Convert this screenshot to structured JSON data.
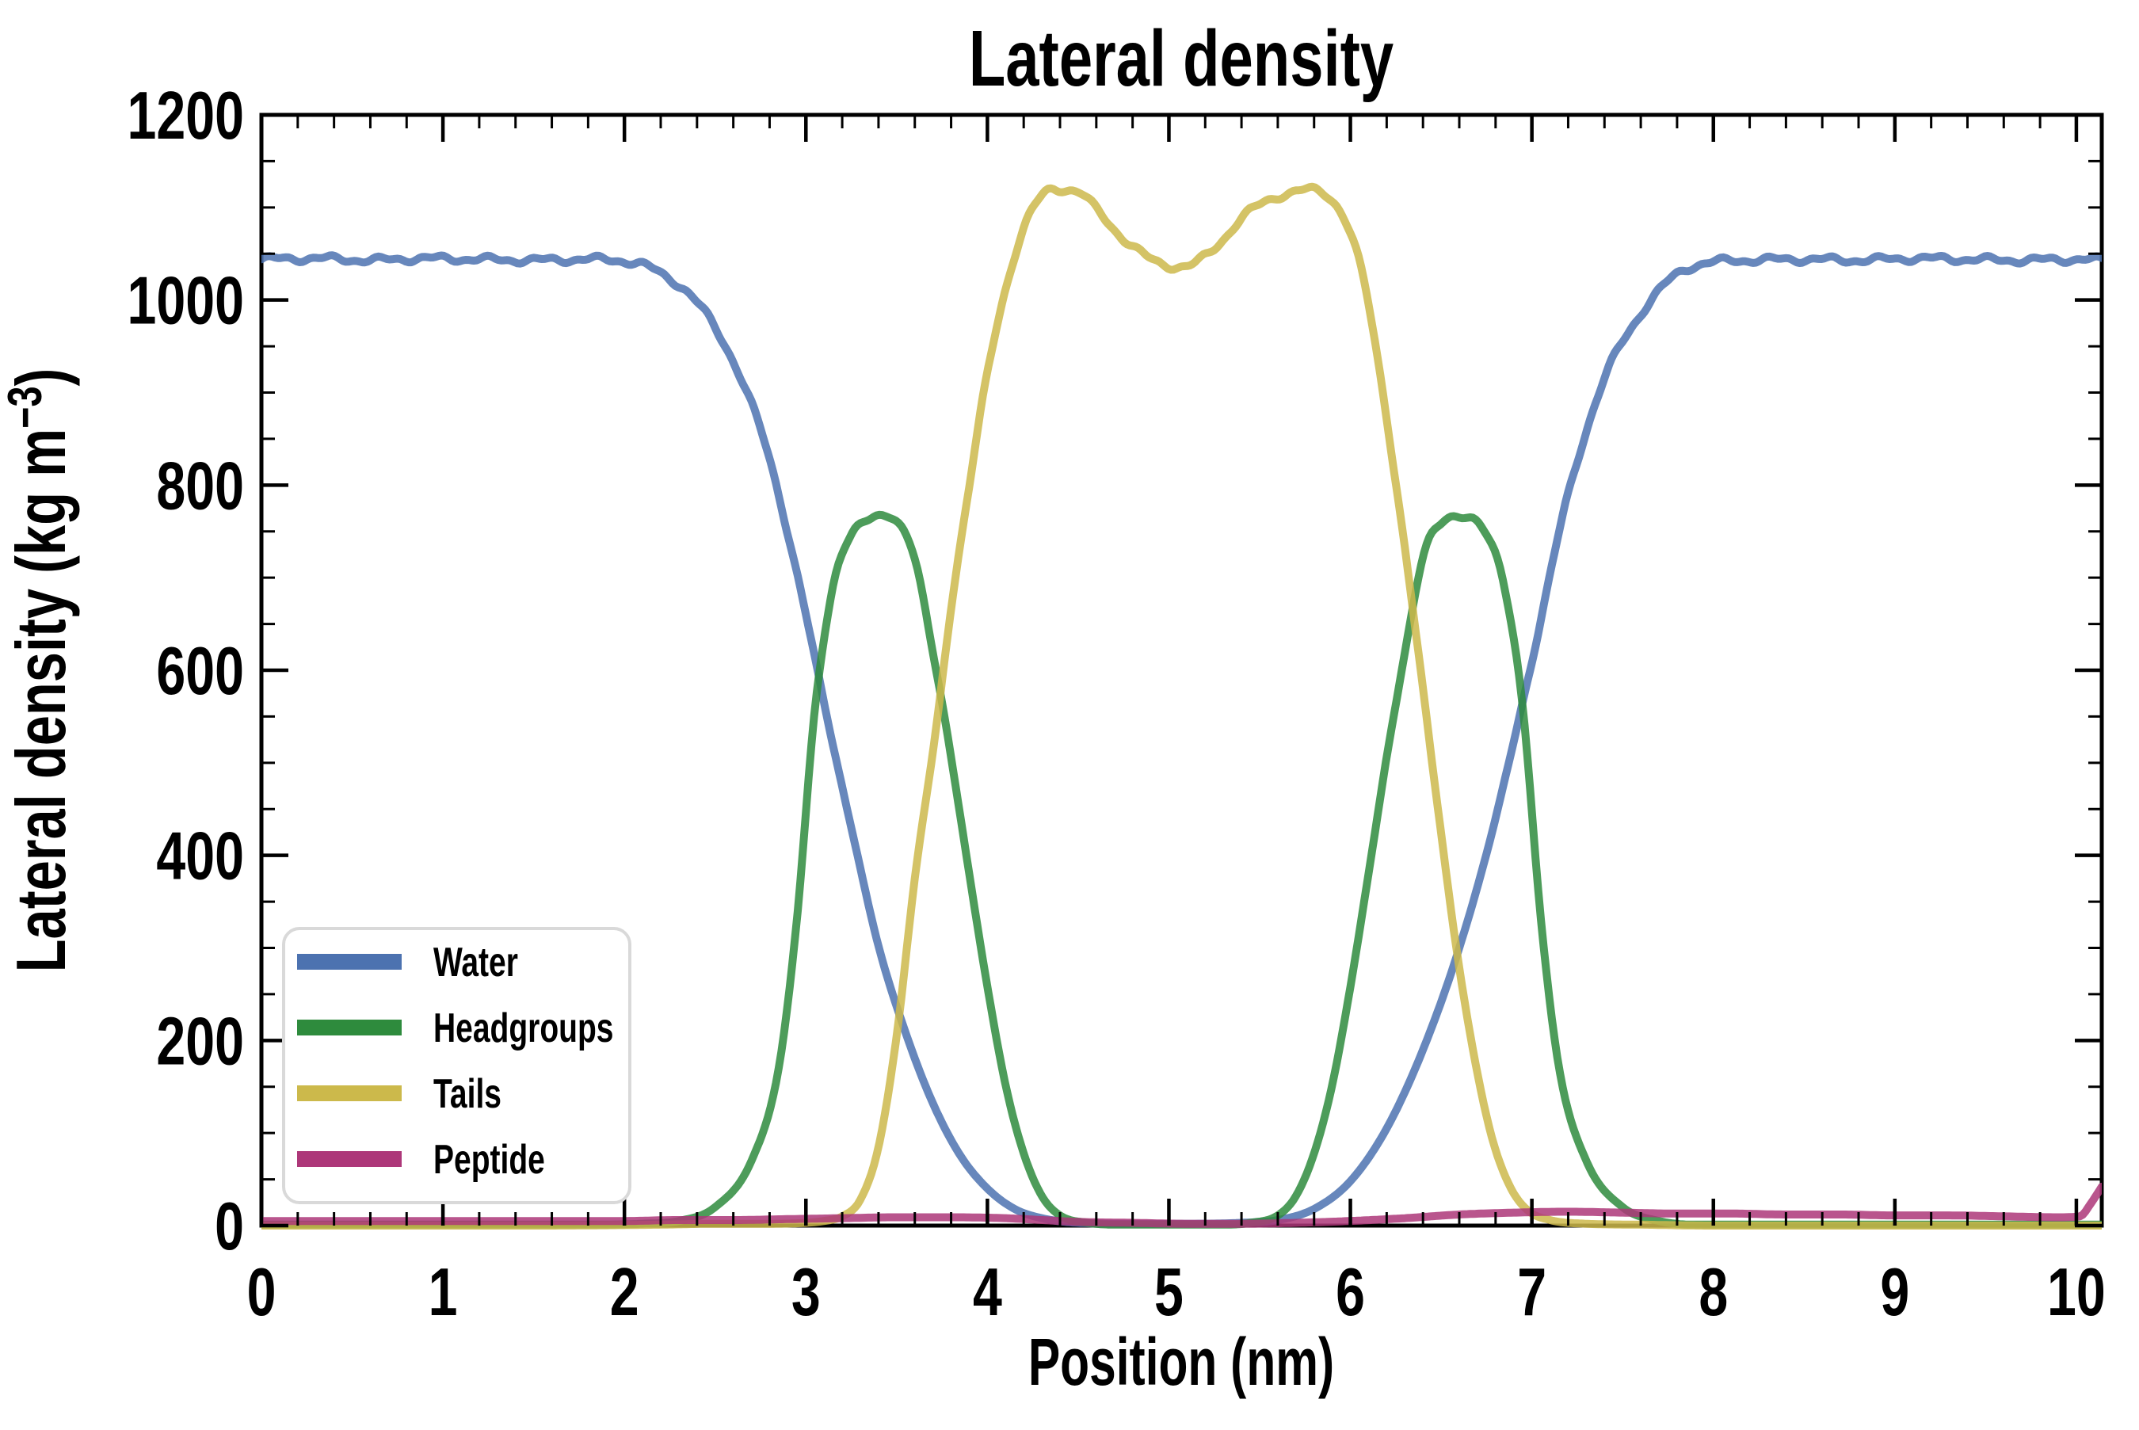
{
  "figure": {
    "background": "#FFFFFF"
  },
  "chart_data": {
    "type": "line",
    "title": "Lateral density",
    "xlabel": "Position (nm)",
    "ylabel": "Lateral density (kg m−3)",
    "ylabel_parts": {
      "prefix": "Lateral density (kg m",
      "superscript": "−3",
      "suffix": ")"
    },
    "axes": {
      "xlim": [
        0,
        10.14
      ],
      "ylim": [
        0,
        1200
      ],
      "x_major_ticks": [
        0,
        1,
        2,
        3,
        4,
        5,
        6,
        7,
        8,
        9,
        10
      ],
      "x_tick_labels": [
        "0",
        "1",
        "2",
        "3",
        "4",
        "5",
        "6",
        "7",
        "8",
        "9",
        "10"
      ],
      "x_minor_step": 0.2,
      "y_major_ticks": [
        0,
        200,
        400,
        600,
        800,
        1000,
        1200
      ],
      "y_tick_labels": [
        "0",
        "200",
        "400",
        "600",
        "800",
        "1000",
        "1200"
      ],
      "y_minor_step": 50,
      "tick_direction": "in",
      "grid": false,
      "spine_color": "#000000"
    },
    "legend": {
      "position": "lower-left",
      "border_color": "#D9D9D9",
      "background": "#FFFFFF"
    },
    "line_width": 10,
    "line_opacity": 0.85,
    "series": [
      {
        "name": "Water",
        "color": "#4C72B0",
        "x": [
          0,
          0.3,
          0.6,
          0.9,
          1.2,
          1.5,
          1.8,
          2.0,
          2.1,
          2.2,
          2.35,
          2.5,
          2.65,
          2.8,
          2.95,
          3.1,
          3.25,
          3.4,
          3.55,
          3.7,
          3.85,
          4.0,
          4.15,
          4.3,
          4.5,
          4.8,
          5.1,
          5.4,
          5.6,
          5.8,
          6.0,
          6.2,
          6.4,
          6.6,
          6.8,
          7.0,
          7.2,
          7.4,
          7.6,
          7.8,
          8.0,
          8.2,
          8.5,
          8.8,
          9.1,
          9.4,
          9.7,
          10.0,
          10.14
        ],
        "y": [
          1044,
          1045,
          1043,
          1045,
          1044,
          1043,
          1044,
          1042,
          1038,
          1029,
          1008,
          970,
          912,
          828,
          705,
          565,
          430,
          302,
          208,
          132,
          76,
          40,
          18,
          8,
          3,
          2,
          2,
          3,
          6,
          18,
          48,
          105,
          190,
          300,
          440,
          610,
          790,
          915,
          985,
          1028,
          1041,
          1043,
          1044,
          1043,
          1045,
          1044,
          1043,
          1044,
          1043
        ]
      },
      {
        "name": "Headgroups",
        "color": "#2E8B3D",
        "x": [
          0,
          1.0,
          1.8,
          2.1,
          2.3,
          2.5,
          2.7,
          2.85,
          2.95,
          3.05,
          3.15,
          3.25,
          3.39,
          3.5,
          3.6,
          3.7,
          3.8,
          3.9,
          4.0,
          4.1,
          4.2,
          4.3,
          4.4,
          4.55,
          4.75,
          5.0,
          5.3,
          5.45,
          5.6,
          5.7,
          5.8,
          5.9,
          6.0,
          6.1,
          6.2,
          6.3,
          6.4,
          6.5,
          6.61,
          6.75,
          6.85,
          6.95,
          7.05,
          7.15,
          7.3,
          7.5,
          7.7,
          7.9,
          8.2,
          8.6,
          9.2,
          9.7,
          10.14
        ],
        "y": [
          1,
          1,
          1,
          2,
          5,
          20,
          70,
          170,
          330,
          560,
          690,
          745,
          768,
          758,
          722,
          620,
          505,
          380,
          258,
          152,
          78,
          32,
          11,
          3,
          1,
          1,
          1,
          3,
          11,
          32,
          78,
          152,
          258,
          380,
          505,
          620,
          722,
          758,
          768,
          745,
          690,
          560,
          330,
          170,
          70,
          20,
          5,
          1,
          1,
          1,
          1,
          1,
          1
        ]
      },
      {
        "name": "Tails",
        "color": "#CCB94B",
        "x": [
          0,
          1.5,
          2.2,
          2.5,
          2.8,
          3.0,
          3.1,
          3.2,
          3.3,
          3.4,
          3.5,
          3.6,
          3.72,
          3.8,
          3.9,
          4.0,
          4.1,
          4.2,
          4.3,
          4.38,
          4.5,
          4.6,
          4.7,
          4.8,
          4.9,
          5.0,
          5.08,
          5.2,
          5.3,
          5.4,
          5.5,
          5.6,
          5.7,
          5.78,
          5.88,
          5.98,
          6.08,
          6.18,
          6.28,
          6.38,
          6.48,
          6.58,
          6.68,
          6.78,
          6.88,
          6.98,
          7.1,
          7.3,
          7.6,
          8.0,
          9.0,
          10.14
        ],
        "y": [
          0,
          0,
          1,
          2,
          2,
          3,
          5,
          10,
          28,
          85,
          205,
          375,
          540,
          668,
          800,
          920,
          1012,
          1078,
          1112,
          1120,
          1117,
          1098,
          1076,
          1058,
          1044,
          1037,
          1036,
          1047,
          1066,
          1088,
          1103,
          1112,
          1117,
          1119,
          1112,
          1082,
          1015,
          900,
          760,
          610,
          455,
          305,
          185,
          95,
          42,
          16,
          6,
          2,
          1,
          0,
          0,
          0
        ]
      },
      {
        "name": "Peptide",
        "color": "#AD3779",
        "x": [
          0,
          0.5,
          1.0,
          1.5,
          2.0,
          2.3,
          2.6,
          2.9,
          3.2,
          3.5,
          3.8,
          4.1,
          4.3,
          4.5,
          4.8,
          5.1,
          5.4,
          5.7,
          6.0,
          6.3,
          6.6,
          6.9,
          7.2,
          7.5,
          7.8,
          8.1,
          8.4,
          8.7,
          9.0,
          9.3,
          9.6,
          9.9,
          10.02,
          10.08,
          10.14
        ],
        "y": [
          5,
          5,
          5,
          5,
          5,
          6,
          6,
          7,
          8,
          9,
          9,
          8,
          6,
          4,
          3,
          2,
          2,
          3,
          5,
          8,
          12,
          14,
          15,
          14,
          13,
          13,
          12,
          12,
          11,
          11,
          10,
          9,
          10,
          24,
          42
        ]
      }
    ]
  }
}
